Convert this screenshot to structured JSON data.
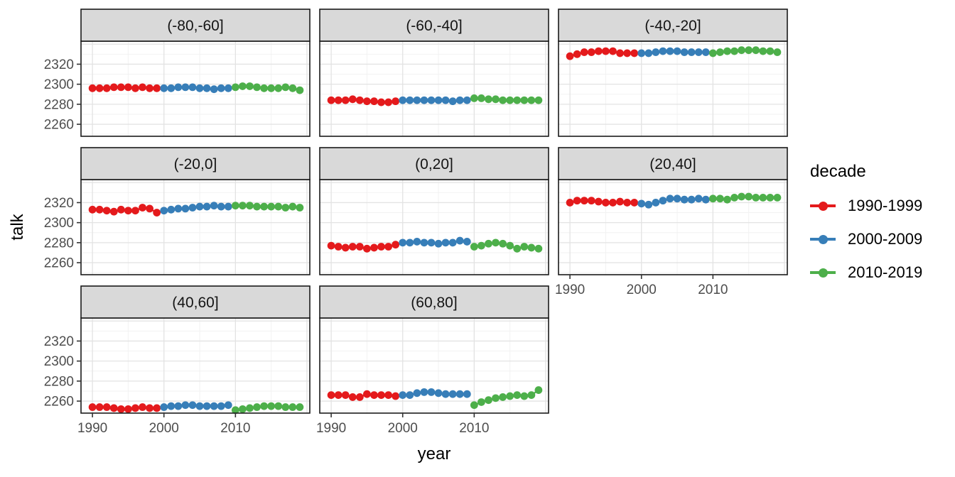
{
  "legend": {
    "title": "decade",
    "items": [
      {
        "label": "1990-1999",
        "color": "#E41A1C"
      },
      {
        "label": "2000-2009",
        "color": "#377EB8"
      },
      {
        "label": "2010-2019",
        "color": "#4DAF4A"
      }
    ]
  },
  "chart_data": {
    "type": "line",
    "title": "",
    "xlabel": "year",
    "ylabel": "talk",
    "legend_position": "right",
    "grid": "on",
    "x_ticks": [
      1990,
      2000,
      2010
    ],
    "x_minor_ticks": [
      1995,
      2005,
      2015
    ],
    "x_major_gridlines": [
      1990,
      2000,
      2010,
      2020
    ],
    "y_ticks": [
      2260,
      2280,
      2300,
      2320
    ],
    "y_major_gridlines": [
      2260,
      2280,
      2300,
      2320,
      2340
    ],
    "y_minor_gridlines": [
      2250,
      2270,
      2290,
      2310,
      2330
    ],
    "x_domain": [
      1988.4,
      2020.4
    ],
    "y_domain": [
      2248,
      2343
    ],
    "facet_variable": "latitude band",
    "facets": [
      {
        "label": "(-80,-60]",
        "row": 0,
        "col": 0,
        "series": [
          {
            "name": "1990-1999",
            "start_year": 1990,
            "values": [
              2296,
              2296,
              2296,
              2297,
              2297,
              2297,
              2296,
              2297,
              2296,
              2296
            ]
          },
          {
            "name": "2000-2009",
            "start_year": 2000,
            "values": [
              2296,
              2296,
              2297,
              2297,
              2297,
              2296,
              2296,
              2295,
              2296,
              2296
            ]
          },
          {
            "name": "2010-2019",
            "start_year": 2010,
            "values": [
              2297,
              2298,
              2298,
              2297,
              2296,
              2296,
              2296,
              2297,
              2296,
              2294
            ]
          }
        ]
      },
      {
        "label": "(-60,-40]",
        "row": 0,
        "col": 1,
        "series": [
          {
            "name": "1990-1999",
            "start_year": 1990,
            "values": [
              2284,
              2284,
              2284,
              2285,
              2284,
              2283,
              2283,
              2282,
              2282,
              2283
            ]
          },
          {
            "name": "2000-2009",
            "start_year": 2000,
            "values": [
              2284,
              2284,
              2284,
              2284,
              2284,
              2284,
              2284,
              2283,
              2284,
              2284
            ]
          },
          {
            "name": "2010-2019",
            "start_year": 2010,
            "values": [
              2286,
              2286,
              2285,
              2285,
              2284,
              2284,
              2284,
              2284,
              2284,
              2284
            ]
          }
        ]
      },
      {
        "label": "(-40,-20]",
        "row": 0,
        "col": 2,
        "series": [
          {
            "name": "1990-1999",
            "start_year": 1990,
            "values": [
              2328,
              2330,
              2332,
              2332,
              2333,
              2333,
              2333,
              2331,
              2331,
              2331
            ]
          },
          {
            "name": "2000-2009",
            "start_year": 2000,
            "values": [
              2331,
              2331,
              2332,
              2333,
              2333,
              2333,
              2332,
              2332,
              2332,
              2332
            ]
          },
          {
            "name": "2010-2019",
            "start_year": 2010,
            "values": [
              2331,
              2332,
              2333,
              2333,
              2334,
              2334,
              2334,
              2333,
              2333,
              2332
            ]
          }
        ]
      },
      {
        "label": "(-20,0]",
        "row": 1,
        "col": 0,
        "series": [
          {
            "name": "1990-1999",
            "start_year": 1990,
            "values": [
              2313,
              2313,
              2312,
              2311,
              2313,
              2312,
              2312,
              2315,
              2314,
              2310
            ]
          },
          {
            "name": "2000-2009",
            "start_year": 2000,
            "values": [
              2312,
              2313,
              2314,
              2314,
              2315,
              2316,
              2316,
              2317,
              2316,
              2316
            ]
          },
          {
            "name": "2010-2019",
            "start_year": 2010,
            "values": [
              2317,
              2317,
              2317,
              2316,
              2316,
              2316,
              2316,
              2315,
              2316,
              2315
            ]
          }
        ]
      },
      {
        "label": "(0,20]",
        "row": 1,
        "col": 1,
        "series": [
          {
            "name": "1990-1999",
            "start_year": 1990,
            "values": [
              2277,
              2276,
              2275,
              2276,
              2276,
              2274,
              2275,
              2276,
              2276,
              2278
            ]
          },
          {
            "name": "2000-2009",
            "start_year": 2000,
            "values": [
              2280,
              2280,
              2281,
              2280,
              2280,
              2279,
              2280,
              2280,
              2282,
              2281
            ]
          },
          {
            "name": "2010-2019",
            "start_year": 2010,
            "values": [
              2276,
              2277,
              2279,
              2280,
              2279,
              2277,
              2274,
              2276,
              2275,
              2274
            ]
          }
        ]
      },
      {
        "label": "(20,40]",
        "row": 1,
        "col": 2,
        "series": [
          {
            "name": "1990-1999",
            "start_year": 1990,
            "values": [
              2320,
              2322,
              2322,
              2322,
              2321,
              2320,
              2320,
              2321,
              2320,
              2320
            ]
          },
          {
            "name": "2000-2009",
            "start_year": 2000,
            "values": [
              2319,
              2318,
              2320,
              2322,
              2324,
              2324,
              2323,
              2323,
              2324,
              2323
            ]
          },
          {
            "name": "2010-2019",
            "start_year": 2010,
            "values": [
              2324,
              2324,
              2323,
              2325,
              2326,
              2326,
              2325,
              2325,
              2325,
              2325
            ]
          }
        ]
      },
      {
        "label": "(40,60]",
        "row": 2,
        "col": 0,
        "series": [
          {
            "name": "1990-1999",
            "start_year": 1990,
            "values": [
              2254,
              2254,
              2254,
              2253,
              2252,
              2252,
              2253,
              2254,
              2253,
              2253
            ]
          },
          {
            "name": "2000-2009",
            "start_year": 2000,
            "values": [
              2254,
              2255,
              2255,
              2256,
              2256,
              2255,
              2255,
              2255,
              2255,
              2256
            ]
          },
          {
            "name": "2010-2019",
            "start_year": 2010,
            "values": [
              2251,
              2252,
              2253,
              2254,
              2255,
              2255,
              2255,
              2254,
              2254,
              2254
            ]
          }
        ]
      },
      {
        "label": "(60,80]",
        "row": 2,
        "col": 1,
        "series": [
          {
            "name": "1990-1999",
            "start_year": 1990,
            "values": [
              2266,
              2266,
              2266,
              2264,
              2264,
              2267,
              2266,
              2266,
              2266,
              2265
            ]
          },
          {
            "name": "2000-2009",
            "start_year": 2000,
            "values": [
              2266,
              2266,
              2268,
              2269,
              2269,
              2268,
              2267,
              2267,
              2267,
              2267
            ]
          },
          {
            "name": "2010-2019",
            "start_year": 2010,
            "values": [
              2256,
              2259,
              2261,
              2263,
              2264,
              2265,
              2266,
              2265,
              2266,
              2271
            ]
          }
        ]
      }
    ],
    "style_colors": {
      "strip_fill": "#D9D9D9",
      "panel_border": "#1A1A1A",
      "grid_major": "#E3E3E3",
      "grid_minor": "#F2F2F2",
      "tick_text": "#4d4d4d"
    }
  }
}
